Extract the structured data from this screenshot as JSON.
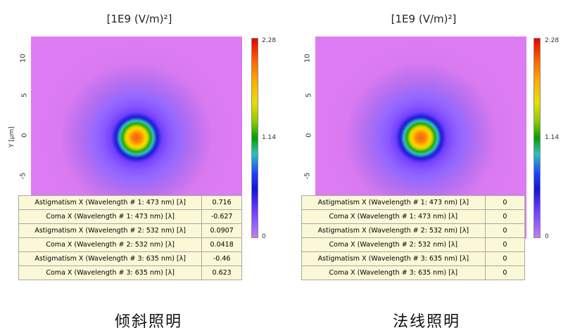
{
  "panels": [
    {
      "title": "[1E9 (V/m)²]",
      "y_axis_label": "Y [μm]",
      "y_ticks": [
        "10",
        "5",
        "0",
        "-5"
      ],
      "colorbar_labels": [
        "2.28",
        "1.14",
        "0"
      ],
      "rows": [
        {
          "label": "Astigmatism X (Wavelength # 1: 473 nm) [λ]",
          "value": "0.716"
        },
        {
          "label": "Coma X (Wavelength # 1: 473 nm) [λ]",
          "value": "-0.627"
        },
        {
          "label": "Astigmatism X (Wavelength # 2: 532 nm) [λ]",
          "value": "0.0907"
        },
        {
          "label": "Coma X (Wavelength # 2: 532 nm) [λ]",
          "value": "0.0418"
        },
        {
          "label": "Astigmatism X (Wavelength # 3: 635 nm) [λ]",
          "value": "-0.46"
        },
        {
          "label": "Coma X (Wavelength # 3: 635 nm) [λ]",
          "value": "0.623"
        }
      ],
      "caption": "倾斜照明"
    },
    {
      "title": "[1E9 (V/m)²]",
      "y_ticks": [
        "10",
        "5",
        "0",
        "-5"
      ],
      "colorbar_labels": [
        "2.28",
        "1.14",
        "0"
      ],
      "rows": [
        {
          "label": "Astigmatism X (Wavelength # 1: 473 nm) [λ]",
          "value": "0"
        },
        {
          "label": "Coma X (Wavelength # 1: 473 nm) [λ]",
          "value": "0"
        },
        {
          "label": "Astigmatism X (Wavelength # 2: 532 nm) [λ]",
          "value": "0"
        },
        {
          "label": "Coma X (Wavelength # 2: 532 nm) [λ]",
          "value": "0"
        },
        {
          "label": "Astigmatism X (Wavelength # 3: 635 nm) [λ]",
          "value": "0"
        },
        {
          "label": "Coma X (Wavelength # 3: 635 nm) [λ]",
          "value": "0"
        }
      ],
      "caption": "法线照明"
    }
  ],
  "colors": {
    "table_bg": "#fbf8d8",
    "field_background": "#dd7cf2"
  }
}
